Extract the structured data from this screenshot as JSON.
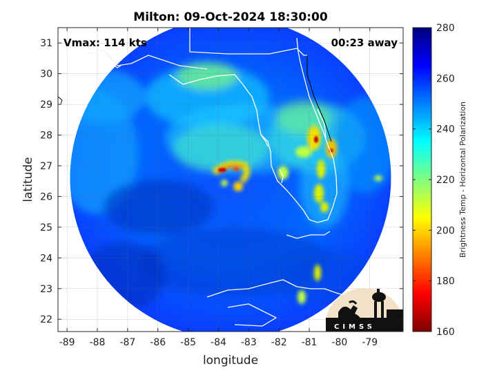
{
  "chart_data": {
    "type": "heatmap",
    "title": "Milton: 09-Oct-2024 18:30:00",
    "xlabel": "longitude",
    "ylabel": "latitude",
    "xlim": [
      -89.3,
      -77.9
    ],
    "ylim": [
      21.6,
      31.5
    ],
    "xticks": [
      -89,
      -88,
      -87,
      -86,
      -85,
      -84,
      -83,
      -82,
      -81,
      -80,
      -79
    ],
    "yticks": [
      22,
      23,
      24,
      25,
      26,
      27,
      28,
      29,
      30,
      31
    ],
    "colorbar": {
      "label": "Brightness Temp - Horizontal Polarization",
      "range": [
        160,
        280
      ],
      "ticks": [
        160,
        180,
        200,
        220,
        240,
        260,
        280
      ],
      "colormap": "jet",
      "colors": [
        "#7f0000",
        "#ff0000",
        "#ffff00",
        "#00ffff",
        "#0000ff",
        "#00007f"
      ]
    },
    "annotations": {
      "vmax": "Vmax: 114 kts",
      "time_offset": "00:23 away"
    },
    "storm_center": {
      "lon": -83.6,
      "lat": 26.6
    },
    "swath": {
      "center_lon": -83.6,
      "center_lat": 26.6,
      "radius_deg": 5.3
    }
  },
  "logo": {
    "text": "CIMSS"
  }
}
